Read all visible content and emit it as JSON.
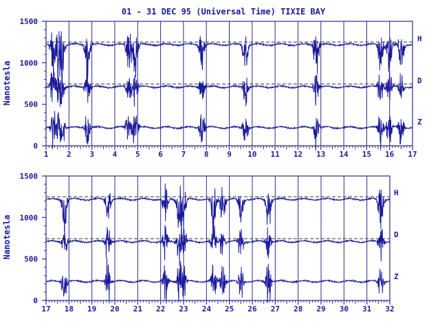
{
  "chart_data": [
    {
      "type": "line",
      "title": "01 - 31 DEC 95 (Universal Time) TIXIE BAY",
      "xlabel": "",
      "ylabel": "Nanotesla",
      "xlim": [
        1,
        17
      ],
      "ylim": [
        0,
        1500
      ],
      "xticks": [
        1,
        2,
        3,
        4,
        5,
        6,
        7,
        8,
        9,
        10,
        11,
        12,
        13,
        14,
        15,
        16,
        17
      ],
      "yticks": [
        0,
        500,
        1000,
        1500
      ],
      "grid": "vertical lines at each day",
      "series": [
        {
          "name": "H",
          "baseline": 1220,
          "reference_level": 1250,
          "disturbed_days": [
            1.3,
            1.5,
            1.7,
            2.8,
            4.6,
            4.9,
            7.8,
            9.7,
            12.8,
            15.6,
            16.0,
            16.5
          ]
        },
        {
          "name": "D",
          "baseline": 710,
          "reference_level": 745,
          "disturbed_days": [
            1.3,
            1.5,
            1.7,
            2.8,
            4.6,
            4.9,
            7.8,
            9.7,
            12.8,
            15.6,
            16.0,
            16.5
          ]
        },
        {
          "name": "Z",
          "baseline": 220,
          "reference_level": null,
          "disturbed_days": [
            1.3,
            1.5,
            1.7,
            2.8,
            4.6,
            4.9,
            7.8,
            9.7,
            12.8,
            15.6,
            16.0,
            16.5
          ]
        }
      ]
    },
    {
      "type": "line",
      "title": "",
      "xlabel": "",
      "ylabel": "Nanotesla",
      "xlim": [
        17,
        32
      ],
      "ylim": [
        0,
        1500
      ],
      "xticks": [
        17,
        18,
        19,
        20,
        21,
        22,
        23,
        24,
        25,
        26,
        27,
        28,
        29,
        30,
        31,
        32
      ],
      "yticks": [
        0,
        500,
        1000,
        1500
      ],
      "grid": "vertical lines at each day",
      "series": [
        {
          "name": "H",
          "baseline": 1220,
          "reference_level": 1250,
          "disturbed_days": [
            17.8,
            19.7,
            22.2,
            22.8,
            23.0,
            24.3,
            24.7,
            25.5,
            26.7,
            31.6
          ]
        },
        {
          "name": "D",
          "baseline": 710,
          "reference_level": 745,
          "disturbed_days": [
            17.8,
            19.7,
            22.2,
            22.8,
            23.0,
            24.3,
            24.7,
            25.5,
            26.7,
            31.6
          ]
        },
        {
          "name": "Z",
          "baseline": 230,
          "reference_level": null,
          "disturbed_days": [
            17.8,
            19.7,
            22.2,
            22.8,
            23.0,
            24.3,
            24.7,
            25.5,
            26.7,
            31.6
          ]
        }
      ]
    }
  ],
  "colors": {
    "ink": "#1a1a9c",
    "grid": "#2a2a8c",
    "reference": "#333333"
  }
}
